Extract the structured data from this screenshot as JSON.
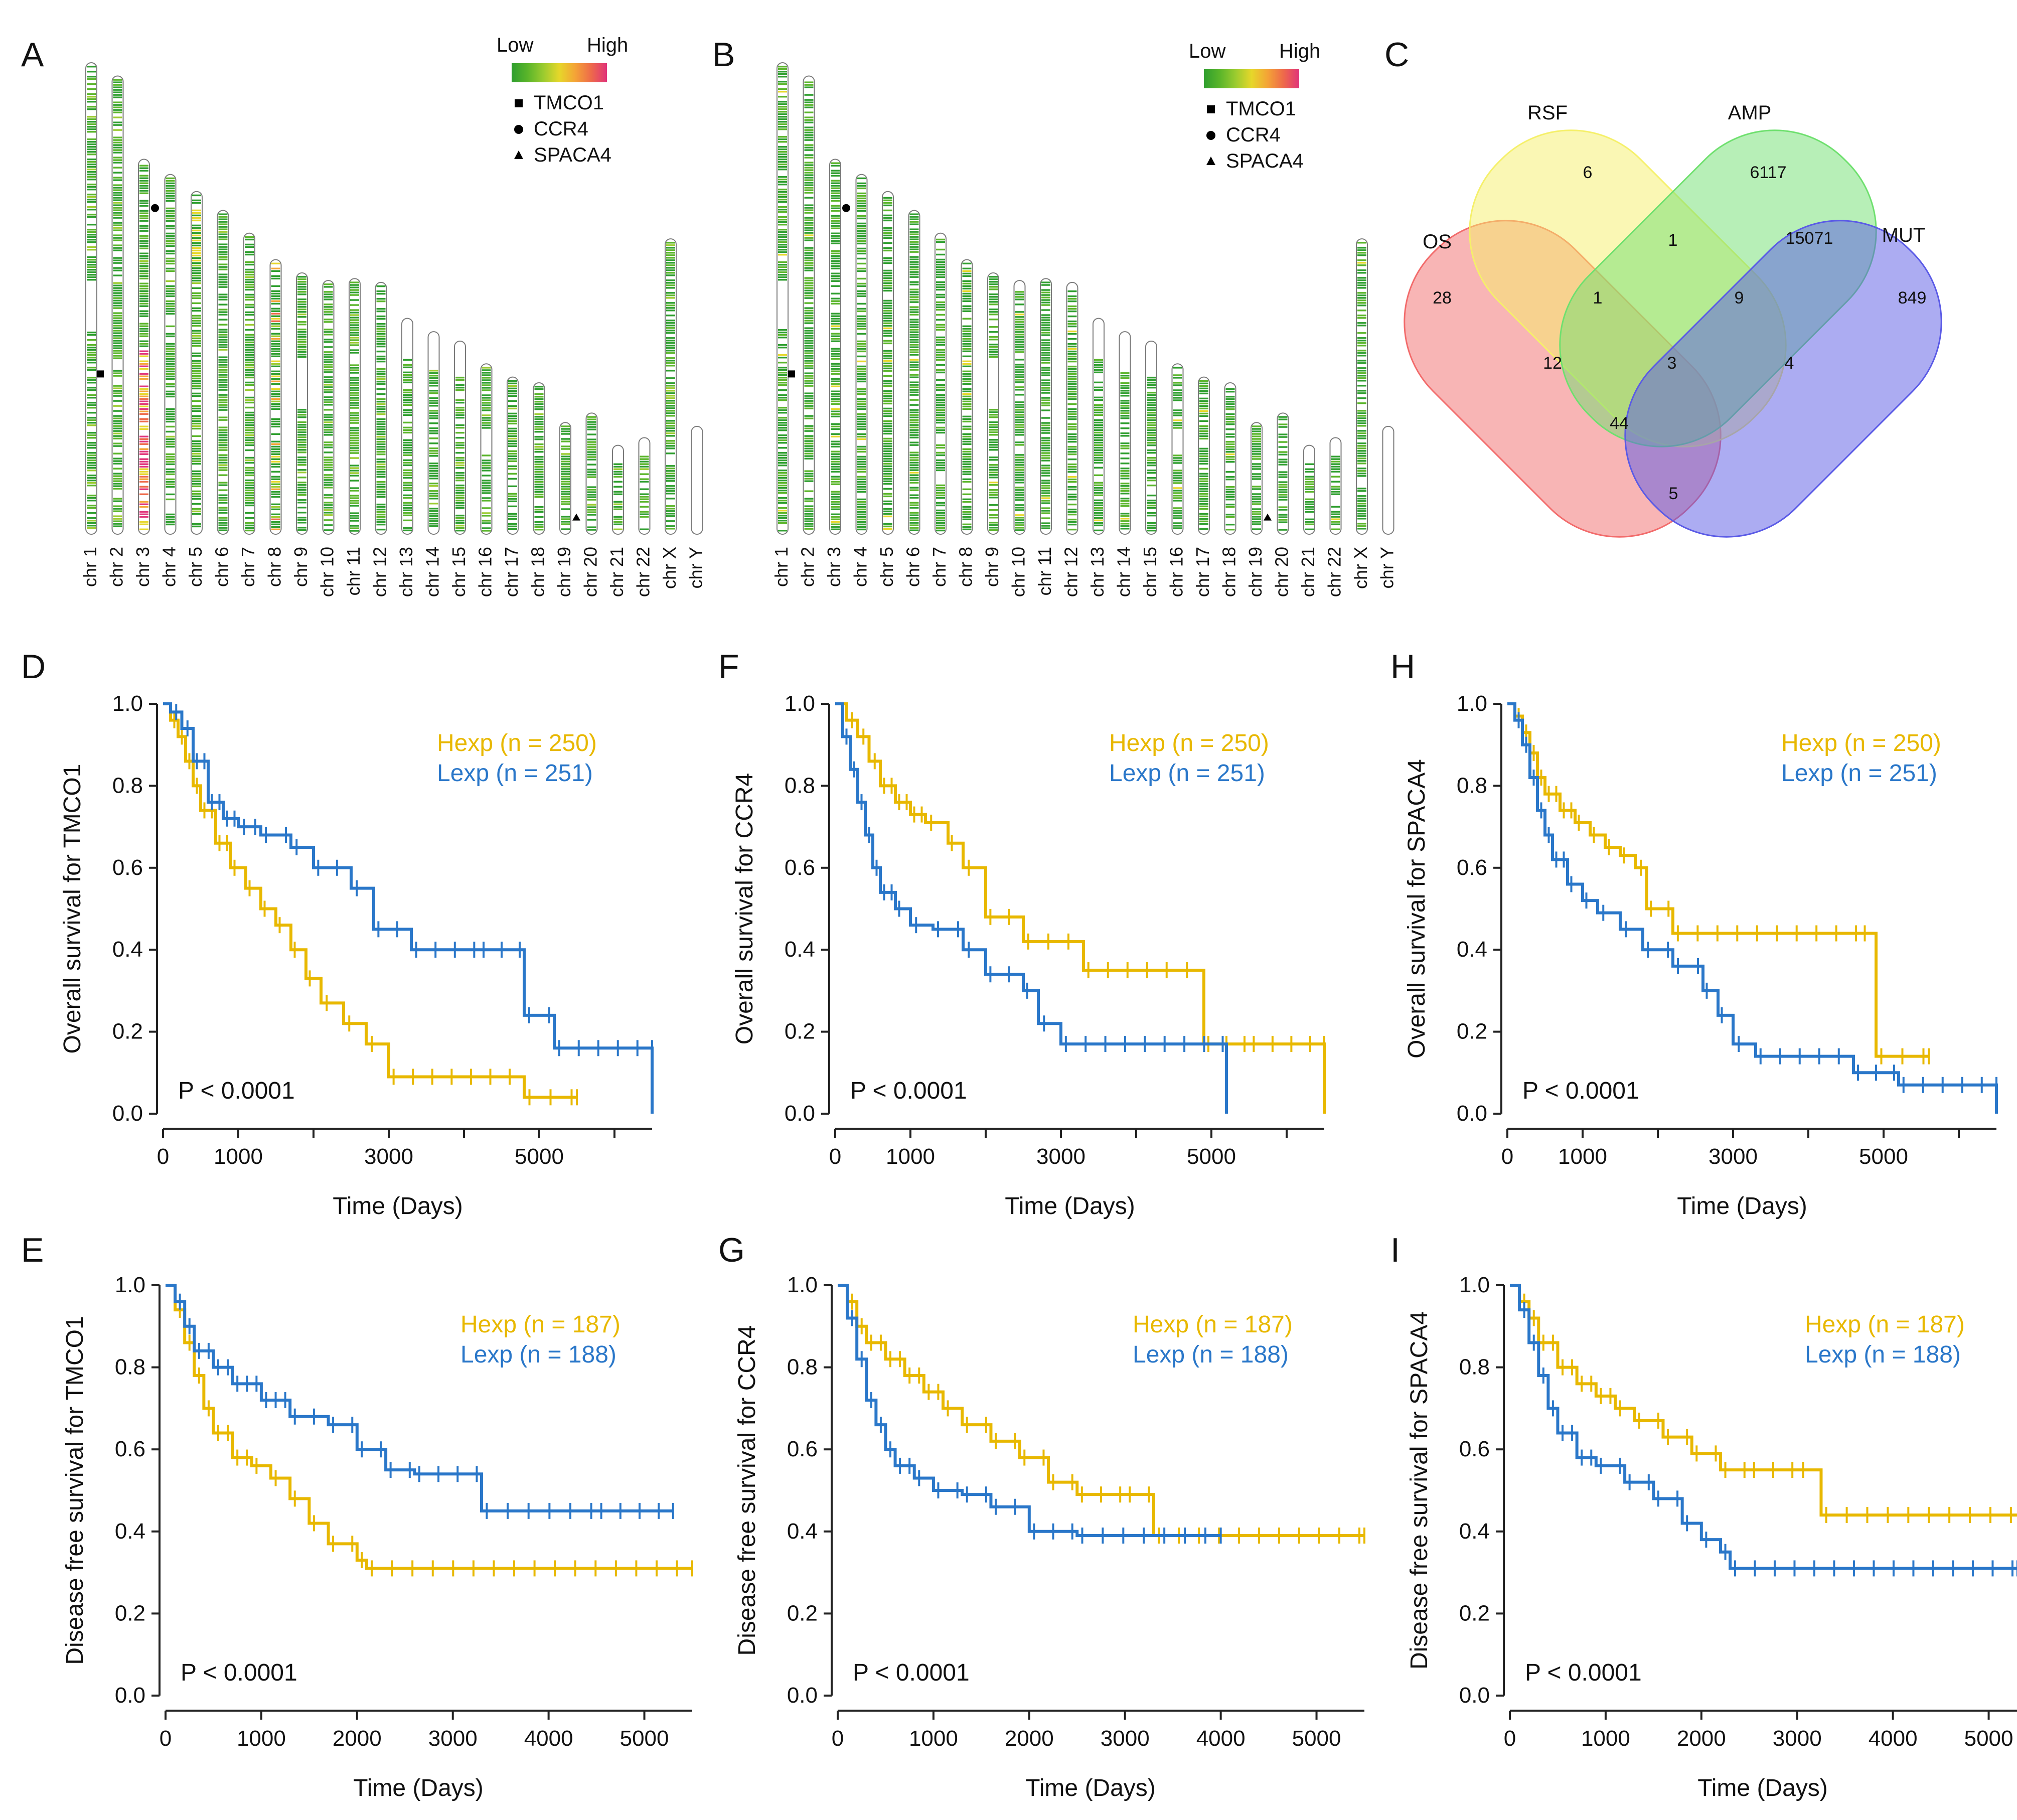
{
  "colors": {
    "hexp": "#E8B800",
    "lexp": "#2A77C9",
    "axis": "#222222",
    "text": "#111111",
    "venn": {
      "OS": "#F26B6B",
      "RSF": "#F5F06A",
      "AMP": "#6FE06F",
      "MUT": "#5A5AE6"
    },
    "heat_low": "#2E9E2E",
    "heat_high": "#E0337A"
  },
  "panel_letters": {
    "A": "A",
    "B": "B",
    "C": "C",
    "D": "D",
    "E": "E",
    "F": "F",
    "G": "G",
    "H": "H",
    "I": "I"
  },
  "ideograms": [
    {
      "id": "A",
      "legend": {
        "low": "Low",
        "high": "High",
        "markers": [
          {
            "shape": "square",
            "label": "TMCO1"
          },
          {
            "shape": "circle",
            "label": "CCR4"
          },
          {
            "shape": "triangle",
            "label": "SPACA4"
          }
        ]
      },
      "profile": "mixed"
    },
    {
      "id": "B",
      "legend": {
        "low": "Low",
        "high": "High",
        "markers": [
          {
            "shape": "square",
            "label": "TMCO1"
          },
          {
            "shape": "circle",
            "label": "CCR4"
          },
          {
            "shape": "triangle",
            "label": "SPACA4"
          }
        ]
      },
      "profile": "green"
    }
  ],
  "chromosomes": [
    {
      "label": "chr 1",
      "length": 249
    },
    {
      "label": "chr 2",
      "length": 242
    },
    {
      "label": "chr 3",
      "length": 198
    },
    {
      "label": "chr 4",
      "length": 190
    },
    {
      "label": "chr 5",
      "length": 181
    },
    {
      "label": "chr 6",
      "length": 171
    },
    {
      "label": "chr 7",
      "length": 159
    },
    {
      "label": "chr 8",
      "length": 145
    },
    {
      "label": "chr 9",
      "length": 138
    },
    {
      "label": "chr 10",
      "length": 134
    },
    {
      "label": "chr 11",
      "length": 135
    },
    {
      "label": "chr 12",
      "length": 133
    },
    {
      "label": "chr 13",
      "length": 114
    },
    {
      "label": "chr 14",
      "length": 107
    },
    {
      "label": "chr 15",
      "length": 102
    },
    {
      "label": "chr 16",
      "length": 90
    },
    {
      "label": "chr 17",
      "length": 83
    },
    {
      "label": "chr 18",
      "length": 80
    },
    {
      "label": "chr 19",
      "length": 59
    },
    {
      "label": "chr 20",
      "length": 64
    },
    {
      "label": "chr 21",
      "length": 47
    },
    {
      "label": "chr 22",
      "length": 51
    },
    {
      "label": "chr X",
      "length": 156
    },
    {
      "label": "chr Y",
      "length": 57
    }
  ],
  "gene_markers": [
    {
      "gene": "TMCO1",
      "shape": "square",
      "chromosome": "chr 1",
      "position_fraction": 0.66
    },
    {
      "gene": "CCR4",
      "shape": "circle",
      "chromosome": "chr 3",
      "position_fraction": 0.13
    },
    {
      "gene": "SPACA4",
      "shape": "triangle",
      "chromosome": "chr 19",
      "position_fraction": 0.85
    }
  ],
  "venn": {
    "sets": [
      {
        "key": "OS",
        "label": "OS"
      },
      {
        "key": "RSF",
        "label": "RSF"
      },
      {
        "key": "AMP",
        "label": "AMP"
      },
      {
        "key": "MUT",
        "label": "MUT"
      }
    ],
    "regions": [
      {
        "sets": "OS",
        "value": "28"
      },
      {
        "sets": "RSF",
        "value": "6"
      },
      {
        "sets": "AMP",
        "value": "6117"
      },
      {
        "sets": "MUT",
        "value": "849"
      },
      {
        "sets": "RSF&AMP",
        "value": "1"
      },
      {
        "sets": "AMP&MUT",
        "value": "15071"
      },
      {
        "sets": "OS&RSF",
        "value": "1"
      },
      {
        "sets": "RSF&AMP&MUT",
        "value": "9"
      },
      {
        "sets": "OS&RSF&AMP",
        "value": "12"
      },
      {
        "sets": "OS&RSF&AMP&MUT",
        "value": "3"
      },
      {
        "sets": "RSF&MUT",
        "value": "4"
      },
      {
        "sets": "OS&AMP&MUT",
        "value": "44"
      },
      {
        "sets": "OS&MUT",
        "value": "5"
      }
    ]
  },
  "chart_data": [
    {
      "id": "D",
      "type": "line",
      "ylabel": "Overall survival for TMCO1",
      "xlabel": "Time (Days)",
      "xlim": [
        0,
        6500
      ],
      "ylim": [
        0,
        1.0
      ],
      "xticks": [
        0,
        1000,
        2000,
        3000,
        4000,
        5000,
        6000
      ],
      "xtick_labels": [
        "0",
        "1000",
        "",
        "3000",
        "",
        "5000",
        ""
      ],
      "yticks": [
        "0.0",
        "0.2",
        "0.4",
        "0.6",
        "0.8",
        "1.0"
      ],
      "pvalue": "P < 0.0001",
      "series": [
        {
          "name": "Hexp (n = 250)",
          "color": "hexp",
          "x": [
            0,
            100,
            200,
            300,
            400,
            500,
            700,
            900,
            1100,
            1300,
            1500,
            1700,
            1900,
            2100,
            2400,
            2700,
            3000,
            4800,
            5500
          ],
          "y": [
            1.0,
            0.96,
            0.92,
            0.86,
            0.8,
            0.74,
            0.66,
            0.6,
            0.55,
            0.5,
            0.46,
            0.4,
            0.33,
            0.27,
            0.22,
            0.17,
            0.09,
            0.04,
            0.04
          ]
        },
        {
          "name": "Lexp (n = 251)",
          "color": "lexp",
          "x": [
            0,
            100,
            250,
            400,
            600,
            800,
            1000,
            1300,
            1700,
            2000,
            2500,
            2800,
            3300,
            4200,
            4800,
            5200,
            6500,
            6500
          ],
          "y": [
            1.0,
            0.98,
            0.94,
            0.86,
            0.76,
            0.72,
            0.7,
            0.68,
            0.65,
            0.6,
            0.55,
            0.45,
            0.4,
            0.4,
            0.24,
            0.16,
            0.16,
            0.0
          ]
        }
      ]
    },
    {
      "id": "E",
      "type": "line",
      "ylabel": "Disease free survival for TMCO1",
      "xlabel": "Time (Days)",
      "xlim": [
        0,
        5500
      ],
      "ylim": [
        0,
        1.0
      ],
      "xticks": [
        0,
        1000,
        2000,
        3000,
        4000,
        5000
      ],
      "xtick_labels": [
        "0",
        "1000",
        "2000",
        "3000",
        "4000",
        "5000"
      ],
      "yticks": [
        "0.0",
        "0.2",
        "0.4",
        "0.6",
        "0.8",
        "1.0"
      ],
      "pvalue": "P < 0.0001",
      "series": [
        {
          "name": "Hexp (n = 187)",
          "color": "hexp",
          "x": [
            0,
            100,
            200,
            300,
            400,
            500,
            700,
            900,
            1100,
            1300,
            1500,
            1700,
            2000,
            2100,
            5500
          ],
          "y": [
            1.0,
            0.94,
            0.86,
            0.78,
            0.7,
            0.64,
            0.58,
            0.56,
            0.53,
            0.48,
            0.42,
            0.37,
            0.33,
            0.31,
            0.31
          ]
        },
        {
          "name": "Lexp (n = 188)",
          "color": "lexp",
          "x": [
            0,
            100,
            200,
            300,
            500,
            700,
            1000,
            1300,
            1700,
            2000,
            2300,
            2600,
            3000,
            3300,
            4500,
            5300
          ],
          "y": [
            1.0,
            0.96,
            0.9,
            0.84,
            0.8,
            0.76,
            0.72,
            0.68,
            0.66,
            0.6,
            0.55,
            0.54,
            0.54,
            0.45,
            0.45,
            0.45
          ]
        }
      ]
    },
    {
      "id": "F",
      "type": "line",
      "ylabel": "Overall survival for CCR4",
      "xlabel": "Time (Days)",
      "xlim": [
        0,
        6500
      ],
      "ylim": [
        0,
        1.0
      ],
      "xticks": [
        0,
        1000,
        2000,
        3000,
        4000,
        5000,
        6000
      ],
      "xtick_labels": [
        "0",
        "1000",
        "",
        "3000",
        "",
        "5000",
        ""
      ],
      "yticks": [
        "0.0",
        "0.2",
        "0.4",
        "0.6",
        "0.8",
        "1.0"
      ],
      "pvalue": "P < 0.0001",
      "series": [
        {
          "name": "Hexp (n = 250)",
          "color": "hexp",
          "x": [
            0,
            150,
            300,
            450,
            600,
            800,
            1000,
            1200,
            1500,
            1700,
            2000,
            2500,
            3300,
            4600,
            4900,
            5500,
            6500,
            6500
          ],
          "y": [
            1.0,
            0.96,
            0.92,
            0.86,
            0.8,
            0.76,
            0.73,
            0.71,
            0.66,
            0.6,
            0.48,
            0.42,
            0.35,
            0.35,
            0.17,
            0.17,
            0.17,
            0.0
          ]
        },
        {
          "name": "Lexp (n = 251)",
          "color": "lexp",
          "x": [
            0,
            100,
            200,
            300,
            400,
            500,
            600,
            800,
            1000,
            1300,
            1700,
            2000,
            2500,
            2700,
            3000,
            5100,
            5200
          ],
          "y": [
            1.0,
            0.92,
            0.84,
            0.76,
            0.68,
            0.6,
            0.54,
            0.5,
            0.46,
            0.45,
            0.4,
            0.34,
            0.3,
            0.22,
            0.17,
            0.17,
            0.0
          ]
        }
      ]
    },
    {
      "id": "G",
      "type": "line",
      "ylabel": "Disease free survival for CCR4",
      "xlabel": "Time (Days)",
      "xlim": [
        0,
        5500
      ],
      "ylim": [
        0,
        1.0
      ],
      "xticks": [
        0,
        1000,
        2000,
        3000,
        4000,
        5000
      ],
      "xtick_labels": [
        "0",
        "1000",
        "2000",
        "3000",
        "4000",
        "5000"
      ],
      "yticks": [
        "0.0",
        "0.2",
        "0.4",
        "0.6",
        "0.8",
        "1.0"
      ],
      "pvalue": "P < 0.0001",
      "series": [
        {
          "name": "Hexp (n = 187)",
          "color": "hexp",
          "x": [
            0,
            100,
            200,
            300,
            500,
            700,
            900,
            1100,
            1300,
            1600,
            1900,
            2200,
            2500,
            3000,
            3300,
            5500
          ],
          "y": [
            1.0,
            0.96,
            0.9,
            0.86,
            0.82,
            0.78,
            0.74,
            0.7,
            0.66,
            0.62,
            0.58,
            0.52,
            0.49,
            0.49,
            0.39,
            0.39
          ]
        },
        {
          "name": "Lexp (n = 188)",
          "color": "lexp",
          "x": [
            0,
            100,
            200,
            300,
            400,
            500,
            600,
            800,
            1000,
            1300,
            1600,
            2000,
            2500,
            4000
          ],
          "y": [
            1.0,
            0.92,
            0.82,
            0.72,
            0.66,
            0.6,
            0.56,
            0.53,
            0.5,
            0.49,
            0.46,
            0.4,
            0.39,
            0.39
          ]
        }
      ]
    },
    {
      "id": "H",
      "type": "line",
      "ylabel": "Overall survival for SPACA4",
      "xlabel": "Time (Days)",
      "xlim": [
        0,
        6500
      ],
      "ylim": [
        0,
        1.0
      ],
      "xticks": [
        0,
        1000,
        2000,
        3000,
        4000,
        5000,
        6000
      ],
      "xtick_labels": [
        "0",
        "1000",
        "",
        "3000",
        "",
        "5000",
        ""
      ],
      "yticks": [
        "0.0",
        "0.2",
        "0.4",
        "0.6",
        "0.8",
        "1.0"
      ],
      "pvalue": "P < 0.0001",
      "series": [
        {
          "name": "Hexp (n = 250)",
          "color": "hexp",
          "x": [
            0,
            100,
            200,
            300,
            400,
            500,
            700,
            900,
            1100,
            1300,
            1500,
            1700,
            1850,
            2200,
            4700,
            4900,
            5600
          ],
          "y": [
            1.0,
            0.97,
            0.93,
            0.88,
            0.82,
            0.78,
            0.74,
            0.71,
            0.68,
            0.65,
            0.63,
            0.6,
            0.5,
            0.44,
            0.44,
            0.14,
            0.14
          ]
        },
        {
          "name": "Lexp (n = 251)",
          "color": "lexp",
          "x": [
            0,
            100,
            200,
            300,
            400,
            500,
            600,
            800,
            1000,
            1200,
            1500,
            1800,
            2200,
            2600,
            2800,
            3000,
            3300,
            4600,
            5200,
            6500,
            6500
          ],
          "y": [
            1.0,
            0.96,
            0.9,
            0.82,
            0.74,
            0.68,
            0.62,
            0.56,
            0.52,
            0.49,
            0.45,
            0.4,
            0.36,
            0.3,
            0.24,
            0.17,
            0.14,
            0.1,
            0.07,
            0.07,
            0.0
          ]
        }
      ]
    },
    {
      "id": "I",
      "type": "line",
      "ylabel": "Disease free survival for SPACA4",
      "xlabel": "Time (Days)",
      "xlim": [
        0,
        5500
      ],
      "ylim": [
        0,
        1.0
      ],
      "xticks": [
        0,
        1000,
        2000,
        3000,
        4000,
        5000
      ],
      "xtick_labels": [
        "0",
        "1000",
        "2000",
        "3000",
        "4000",
        "5000"
      ],
      "yticks": [
        "0.0",
        "0.2",
        "0.4",
        "0.6",
        "0.8",
        "1.0"
      ],
      "pvalue": "P < 0.0001",
      "series": [
        {
          "name": "Hexp (n = 187)",
          "color": "hexp",
          "x": [
            0,
            100,
            200,
            300,
            500,
            700,
            900,
            1100,
            1300,
            1600,
            1900,
            2200,
            2500,
            3000,
            3250,
            5500
          ],
          "y": [
            1.0,
            0.96,
            0.92,
            0.86,
            0.8,
            0.76,
            0.73,
            0.7,
            0.67,
            0.63,
            0.59,
            0.55,
            0.55,
            0.55,
            0.44,
            0.44
          ]
        },
        {
          "name": "Lexp (n = 188)",
          "color": "lexp",
          "x": [
            0,
            100,
            200,
            300,
            400,
            500,
            700,
            900,
            1200,
            1500,
            1800,
            2000,
            2200,
            2300,
            5300
          ],
          "y": [
            1.0,
            0.94,
            0.86,
            0.78,
            0.7,
            0.64,
            0.58,
            0.56,
            0.52,
            0.48,
            0.42,
            0.38,
            0.35,
            0.31,
            0.31
          ]
        }
      ]
    }
  ]
}
